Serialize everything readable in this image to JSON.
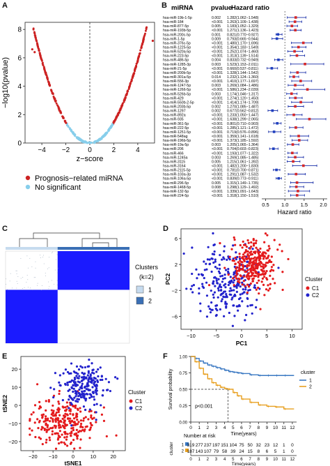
{
  "panels": {
    "a": "A",
    "b": "B",
    "c": "C",
    "d": "D",
    "e": "E",
    "f": "F"
  },
  "volcano": {
    "type": "scatter",
    "xlabel": "z−score",
    "ylabel": "−log10(pvalue)",
    "xticks": [
      "−4",
      "−2",
      "0",
      "2",
      "4"
    ],
    "yticks": [
      "0",
      "2",
      "4",
      "6",
      "8"
    ],
    "xlim": [
      -5.4,
      5.4
    ],
    "ylim": [
      0,
      8.5
    ],
    "legend": [
      {
        "label": "Prognosis−related miRNA",
        "color": "#cc2222"
      },
      {
        "label": "No significant",
        "color": "#87ceeb"
      }
    ],
    "threshold_lines": [
      -1.96,
      1.96
    ]
  },
  "forest": {
    "type": "table",
    "headers": [
      "miRNA",
      "pvalue",
      "Hazard ratio"
    ],
    "xlabel": "Hazard ratio",
    "xticks": [
      "0.5",
      "1.0",
      "1.5",
      "2.0"
    ],
    "xlim": [
      0.4,
      2.1
    ],
    "rows": [
      [
        "hsa-miR-19b-1-5p",
        "0.002",
        "1.282(1.062−1.548)",
        1.282,
        1.062,
        1.548
      ],
      [
        "hsa-miR-184",
        "<0.001",
        "1.263(1.109−1.438)",
        1.263,
        1.109,
        1.438
      ],
      [
        "hsa-miR-877-5p",
        "0.005",
        "1.183(1.052−1.329)",
        1.183,
        1.052,
        1.329
      ],
      [
        "hsa-miR-193b-5p",
        "<0.001",
        "1.271(1.136−1.423)",
        1.271,
        1.136,
        1.423
      ],
      [
        "hsa-miR-200c-5p",
        "0.001",
        "0.821(0.770−0.927)",
        0.821,
        0.77,
        0.927
      ],
      [
        "hsa-miR-1-5p",
        "0.009",
        "0.793(0.665−0.944)",
        0.793,
        0.665,
        0.944
      ],
      [
        "hsa-miR-376c-5p",
        "<0.001",
        "1.480(1.170−1.696)",
        1.48,
        1.17,
        1.696
      ],
      [
        "hsa-miR-1225-5p",
        "<0.001",
        "1.354(1.183−1.549)",
        1.354,
        1.183,
        1.549
      ],
      [
        "hsa-miR-520a-5p",
        "<0.001",
        "1.252(1.074−1.460)",
        1.252,
        1.074,
        1.46
      ],
      [
        "hsa-miR-223-5p",
        "<0.001",
        "1.313(1.139−1.514)",
        1.313,
        1.139,
        1.514
      ],
      [
        "hsa-miR-486-5p",
        "0.004",
        "0.833(0.732−0.949)",
        0.833,
        0.732,
        0.949
      ],
      [
        "hsa-miR-1285-3p",
        "0.003",
        "1.523(1.153−2.011)",
        1.523,
        1.153,
        2.011
      ],
      [
        "hsa-miR-21-5p",
        "<0.001",
        "0.660(0.537−0.811)",
        0.66,
        0.537,
        0.811
      ],
      [
        "hsa-miR-200b-5p",
        "<0.001",
        "1.328(1.144−1.542)",
        1.328,
        1.144,
        1.542
      ],
      [
        "hsa-miR-301a-5p",
        "0.014",
        "1.232(1.124−1.360)",
        1.232,
        1.124,
        1.36
      ],
      [
        "hsa-miR-556-3p",
        "<0.001",
        "1.410(1.177−1.697)",
        1.41,
        1.177,
        1.697
      ],
      [
        "hsa-miR-1247-5p",
        "0.003",
        "1.269(1.084−1.486)",
        1.269,
        1.084,
        1.486
      ],
      [
        "hsa-miR-1266-5p",
        "<0.001",
        "1.586(1.234−2.039)",
        1.586,
        1.234,
        2.039
      ],
      [
        "hsa-miR-526b-5p",
        "0.003",
        "1.174(1.046−1.317)",
        1.174,
        1.046,
        1.317
      ],
      [
        "hsa-miR-429",
        "<0.001",
        "1.274(1.120−1.450)",
        1.274,
        1.12,
        1.45
      ],
      [
        "hsa-miR-550b-2-5p",
        "<0.001",
        "1.414(1.174−1.709)",
        1.414,
        1.174,
        1.709
      ],
      [
        "hsa-miR-203b-5p",
        "0.002",
        "1.270(1.085−1.487)",
        1.27,
        1.085,
        1.487
      ],
      [
        "hsa-miR-1297",
        "0.002",
        "0.677(0.562−0.812)",
        0.677,
        0.562,
        0.812
      ],
      [
        "hsa-miR-892a",
        "<0.001",
        "1.233(1.050−1.447)",
        1.233,
        1.05,
        1.447
      ],
      [
        "hsa-miR-935",
        "<0.001",
        "1.638(1.299−2.065)",
        1.638,
        1.299,
        2.065
      ],
      [
        "hsa-miR-361-5p",
        "<0.001",
        "0.801(0.710−0.903)",
        0.801,
        0.71,
        0.903
      ],
      [
        "hsa-miR-222-5p",
        "<0.001",
        "1.285(1.121−1.472)",
        1.285,
        1.121,
        1.472
      ],
      [
        "hsa-miR-1251-5p",
        "<0.001",
        "0.719(0.576−0.896)",
        0.719,
        0.576,
        0.896
      ],
      [
        "hsa-miR-548ag",
        "<0.001",
        "1.359(1.141−1.618)",
        1.359,
        1.141,
        1.618
      ],
      [
        "hsa-miR-196b-5p",
        "<0.001",
        "1.373(1.185−1.592)",
        1.373,
        1.185,
        1.592
      ],
      [
        "hsa-miR-19a-5p",
        "0.003",
        "1.205(1.065−1.364)",
        1.205,
        1.065,
        1.364
      ],
      [
        "hsa-miR-206",
        "<0.001",
        "0.704(0.603−0.823)",
        0.704,
        0.603,
        0.823
      ],
      [
        "hsa-miR-466",
        "<0.001",
        "1.193(1.077−1.322)",
        1.193,
        1.077,
        1.322
      ],
      [
        "hsa-miR-1245a",
        "0.003",
        "1.269(1.085−1.485)",
        1.269,
        1.085,
        1.485
      ],
      [
        "hsa-miR-3115",
        "0.005",
        "1.215(1.061−1.392)",
        1.215,
        1.061,
        1.392
      ],
      [
        "hsa-miR-3164",
        "<0.001",
        "1.482(1.200−1.830)",
        1.482,
        1.2,
        1.83
      ],
      [
        "hsa-miR-2115-5p",
        "<0.001",
        "0.781(0.700−0.871)",
        0.781,
        0.7,
        0.871
      ],
      [
        "hsa-miR-103a-3p",
        "<0.001",
        "1.291(1.087−1.532)",
        1.291,
        1.087,
        1.532
      ],
      [
        "hsa-miR-106a-5p",
        "<0.001",
        "0.839(0.773−0.911)",
        0.839,
        0.773,
        0.911
      ],
      [
        "hsa-miR-296-5p",
        "0.005",
        "1.315(1.149−1.735)",
        1.315,
        1.149,
        1.735
      ],
      [
        "hsa-miR-1468-5p",
        "0.008",
        "1.298(1.129−1.492)",
        1.298,
        1.129,
        1.492
      ],
      [
        "hsa-miR-132-5p",
        "<0.001",
        "1.339(1.091−1.643)",
        1.339,
        1.091,
        1.643
      ],
      [
        "hsa-miR-224-5p",
        "<0.001",
        "1.318(1.150−1.510)",
        1.318,
        1.15,
        1.51
      ]
    ]
  },
  "heatmap": {
    "type": "heatmap",
    "legend_title": "Clusters",
    "legend_subtitle": "(k=2)",
    "legend": [
      {
        "label": "1",
        "color": "#c6dbef"
      },
      {
        "label": "2",
        "color": "#3a6fb5"
      }
    ],
    "block_color": "#1a1aff",
    "split": 0.42
  },
  "pca": {
    "type": "scatter",
    "xlabel": "PC1",
    "ylabel": "PC2",
    "xticks": [
      "−10",
      "−5",
      "0",
      "5",
      "10"
    ],
    "yticks": [
      "−6",
      "−2",
      "2",
      "6"
    ],
    "xlim": [
      -12,
      12
    ],
    "ylim": [
      -8,
      7.5
    ],
    "legend_title": "Cluster",
    "legend": [
      {
        "label": "C1",
        "color": "#e41a1c"
      },
      {
        "label": "C2",
        "color": "#2222cc"
      }
    ]
  },
  "tsne": {
    "type": "scatter",
    "xlabel": "tSNE1",
    "ylabel": "tSNE2",
    "xticks": [
      "−20",
      "−10",
      "0",
      "10",
      "20"
    ],
    "yticks": [
      "−20",
      "−10",
      "0",
      "10",
      "20"
    ],
    "xlim": [
      -26,
      26
    ],
    "ylim": [
      -25,
      27
    ],
    "legend_title": "Cluster",
    "legend": [
      {
        "label": "C1",
        "color": "#e41a1c"
      },
      {
        "label": "C2",
        "color": "#2222cc"
      }
    ]
  },
  "km": {
    "type": "line",
    "ylabel": "Survival probability",
    "xlabel": "Time(years)",
    "xticks": [
      "0",
      "1",
      "2",
      "3",
      "4",
      "5",
      "6",
      "7",
      "8",
      "9",
      "10",
      "11",
      "12"
    ],
    "yticks": [
      "0.00",
      "0.25",
      "0.50",
      "0.75",
      "1.00"
    ],
    "xlim": [
      0,
      12.5
    ],
    "ylim": [
      0,
      1.0
    ],
    "pvalue": "p<0.001",
    "median_marker": {
      "x": 4.4,
      "y": 0.5
    },
    "legend_title": "cluster",
    "series": [
      {
        "name": "1",
        "color": "#3a78c2",
        "x": [
          0,
          0.5,
          1,
          1.5,
          2,
          2.5,
          3,
          3.5,
          4,
          4.5,
          5,
          5.5,
          6,
          7,
          8,
          9,
          10,
          11,
          12.2
        ],
        "y": [
          1.0,
          0.97,
          0.93,
          0.9,
          0.87,
          0.85,
          0.83,
          0.81,
          0.79,
          0.77,
          0.76,
          0.75,
          0.74,
          0.72,
          0.71,
          0.71,
          0.71,
          0.71,
          0.71
        ]
      },
      {
        "name": "2",
        "color": "#e8a020",
        "x": [
          0,
          0.5,
          1,
          1.5,
          2,
          2.5,
          3,
          3.5,
          4,
          4.4,
          5,
          5.5,
          6,
          7,
          8,
          9,
          10,
          11,
          12.2
        ],
        "y": [
          1.0,
          0.92,
          0.82,
          0.73,
          0.66,
          0.6,
          0.56,
          0.53,
          0.51,
          0.5,
          0.45,
          0.4,
          0.35,
          0.3,
          0.26,
          0.24,
          0.23,
          0.2,
          0.2
        ]
      }
    ],
    "risk_table": {
      "title": "Number at risk",
      "ylabel": "cluster",
      "xlabel": "Time(years)",
      "rows": [
        {
          "name": "1",
          "color": "#3a78c2",
          "values": [
            "319",
            "277",
            "237",
            "197",
            "151",
            "104",
            "75",
            "50",
            "32",
            "23",
            "12",
            "1",
            "0"
          ]
        },
        {
          "name": "2",
          "color": "#e8a020",
          "values": [
            "187",
            "143",
            "107",
            "79",
            "58",
            "39",
            "24",
            "15",
            "8",
            "6",
            "5",
            "1",
            "0"
          ]
        }
      ]
    }
  }
}
